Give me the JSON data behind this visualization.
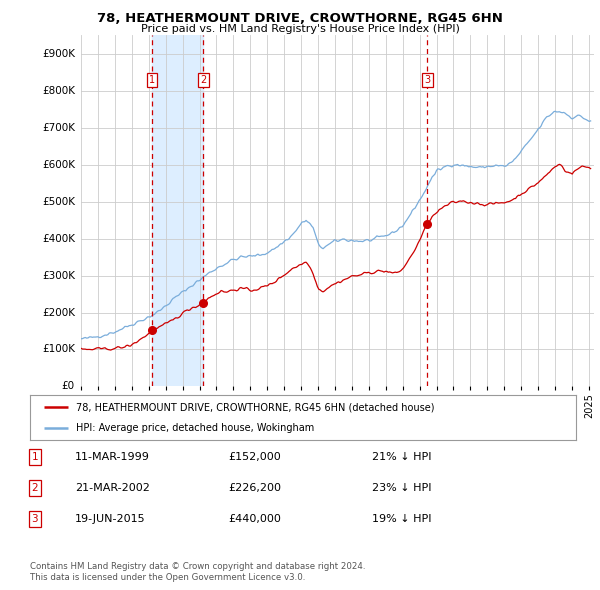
{
  "title": "78, HEATHERMOUNT DRIVE, CROWTHORNE, RG45 6HN",
  "subtitle": "Price paid vs. HM Land Registry's House Price Index (HPI)",
  "legend_line1": "78, HEATHERMOUNT DRIVE, CROWTHORNE, RG45 6HN (detached house)",
  "legend_line2": "HPI: Average price, detached house, Wokingham",
  "footer1": "Contains HM Land Registry data © Crown copyright and database right 2024.",
  "footer2": "This data is licensed under the Open Government Licence v3.0.",
  "transactions": [
    {
      "num": 1,
      "date_str": "11-MAR-1999",
      "date_x": 1999.19,
      "price": 152000,
      "label": "£152,000",
      "note": "21% ↓ HPI"
    },
    {
      "num": 2,
      "date_str": "21-MAR-2002",
      "date_x": 2002.22,
      "price": 226200,
      "label": "£226,200",
      "note": "23% ↓ HPI"
    },
    {
      "num": 3,
      "date_str": "19-JUN-2015",
      "date_x": 2015.46,
      "price": 440000,
      "label": "£440,000",
      "note": "19% ↓ HPI"
    }
  ],
  "red_line_color": "#cc0000",
  "blue_line_color": "#7aaddb",
  "shade_color": "#ddeeff",
  "grid_color": "#cccccc",
  "background_color": "#ffffff",
  "ylim": [
    0,
    950000
  ],
  "xlim": [
    1995.0,
    2025.3
  ],
  "yticks": [
    0,
    100000,
    200000,
    300000,
    400000,
    500000,
    600000,
    700000,
    800000,
    900000
  ],
  "ytick_labels": [
    "£0",
    "£100K",
    "£200K",
    "£300K",
    "£400K",
    "£500K",
    "£600K",
    "£700K",
    "£800K",
    "£900K"
  ],
  "xticks": [
    1995,
    1996,
    1997,
    1998,
    1999,
    2000,
    2001,
    2002,
    2003,
    2004,
    2005,
    2006,
    2007,
    2008,
    2009,
    2010,
    2011,
    2012,
    2013,
    2014,
    2015,
    2016,
    2017,
    2018,
    2019,
    2020,
    2021,
    2022,
    2023,
    2024,
    2025
  ]
}
